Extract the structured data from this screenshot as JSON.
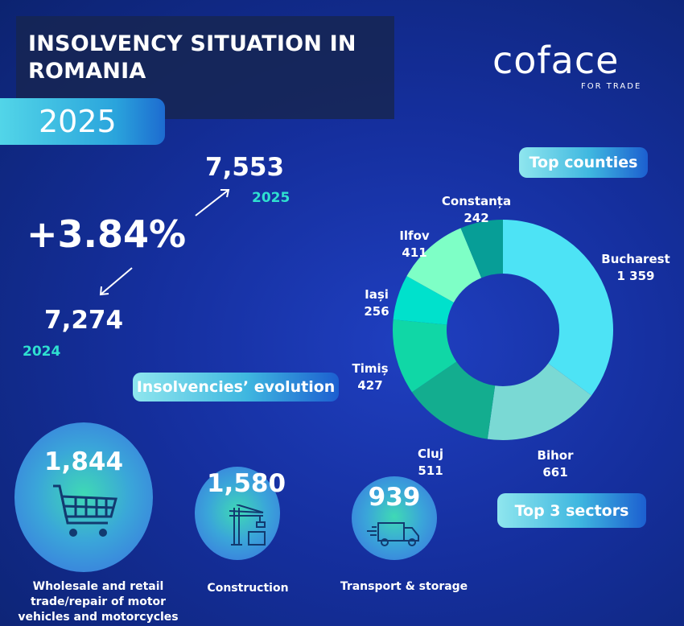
{
  "header": {
    "title_line1": "INSOLVENCY SITUATION IN",
    "title_line2": "ROMANIA",
    "year": "2025"
  },
  "logo": {
    "name": "coface",
    "tagline": "FOR TRADE"
  },
  "evolution": {
    "current_value": "7,553",
    "current_year": "2025",
    "change": "+3.84%",
    "previous_value": "7,274",
    "previous_year": "2024",
    "label": "Insolvencies’ evolution"
  },
  "counties_label": "Top counties",
  "sectors_label": "Top 3 sectors",
  "sectors": [
    {
      "value": "1,844",
      "name": "Wholesale and retail trade/repair of motor vehicles and motorcycles",
      "icon": "shopping-cart-icon"
    },
    {
      "value": "1,580",
      "name": "Construction",
      "icon": "crane-icon"
    },
    {
      "value": "939",
      "name": "Transport & storage",
      "icon": "delivery-truck-icon"
    }
  ],
  "chart_data": {
    "type": "pie",
    "donut": true,
    "title": "Top counties",
    "categories": [
      "Bucharest",
      "Bihor",
      "Cluj",
      "Timiș",
      "Iași",
      "Ilfov",
      "Constanța"
    ],
    "labels": [
      "1 359",
      "661",
      "511",
      "427",
      "256",
      "411",
      "242"
    ],
    "values": [
      1359,
      661,
      511,
      427,
      256,
      411,
      242
    ],
    "colors": [
      "#4de3f5",
      "#7ad9d4",
      "#13ad8f",
      "#10d7a6",
      "#00e1cc",
      "#7effc6",
      "#079e97"
    ]
  }
}
